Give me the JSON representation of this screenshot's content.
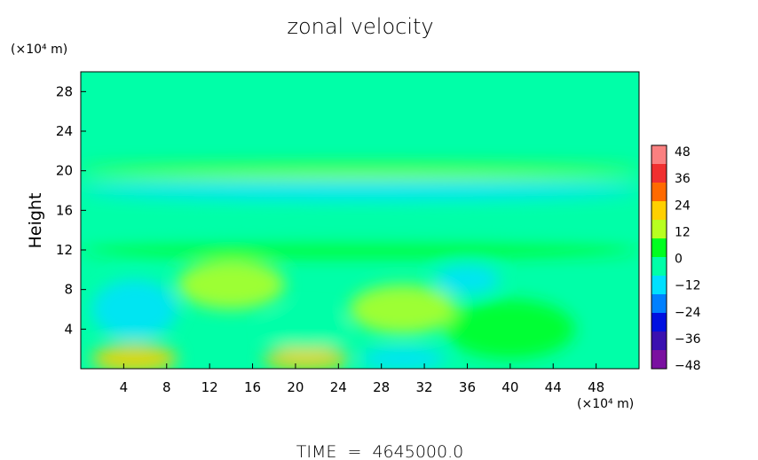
{
  "chart_data": {
    "type": "heatmap",
    "title": "zonal velocity",
    "xlabel": "",
    "ylabel": "Height",
    "x_unit": "(×10⁴ m)",
    "y_unit": "(×10⁴ m)",
    "footer": "TIME  =  4645000.0",
    "xlim": [
      0,
      52
    ],
    "ylim": [
      0,
      30
    ],
    "x_ticks": [
      4,
      8,
      12,
      16,
      20,
      24,
      28,
      32,
      36,
      40,
      44,
      48
    ],
    "y_ticks": [
      4,
      8,
      12,
      16,
      20,
      24,
      28
    ],
    "colorbar": {
      "range": [
        -48,
        48
      ],
      "tick_labels": [
        "48",
        "36",
        "24",
        "12",
        "0",
        "−12",
        "−24",
        "−36",
        "−48"
      ],
      "colors": [
        "#fa8080",
        "#f03030",
        "#ff6a00",
        "#ffd000",
        "#b8ff20",
        "#00ff20",
        "#00ffa8",
        "#00e0ff",
        "#0080ff",
        "#0010e0",
        "#3a10b0",
        "#7a10a0"
      ]
    },
    "background_value": 0,
    "features": [
      {
        "x": 5,
        "y": 6,
        "rx": 4,
        "ry": 3,
        "value": -14
      },
      {
        "x": 5,
        "y": 1,
        "rx": 4,
        "ry": 1.5,
        "value": 20
      },
      {
        "x": 14,
        "y": 8.5,
        "rx": 5,
        "ry": 2.5,
        "value": 14
      },
      {
        "x": 21,
        "y": 1,
        "rx": 4,
        "ry": 1.2,
        "value": 18
      },
      {
        "x": 21,
        "y": 4,
        "rx": 4,
        "ry": 2,
        "value": -6
      },
      {
        "x": 30,
        "y": 6,
        "rx": 5,
        "ry": 2.5,
        "value": 10
      },
      {
        "x": 30,
        "y": 1,
        "rx": 4,
        "ry": 1.2,
        "value": -12
      },
      {
        "x": 36,
        "y": 9,
        "rx": 3,
        "ry": 1.5,
        "value": -14
      },
      {
        "x": 40,
        "y": 4,
        "rx": 6,
        "ry": 3,
        "value": 4
      },
      {
        "x": 26,
        "y": 19.6,
        "rx": 26,
        "ry": 0.4,
        "value": 16
      },
      {
        "x": 26,
        "y": 18,
        "rx": 26,
        "ry": 1,
        "value": -8
      },
      {
        "x": 26,
        "y": 15,
        "rx": 26,
        "ry": 1.5,
        "value": -6
      },
      {
        "x": 26,
        "y": 12,
        "rx": 26,
        "ry": 0.8,
        "value": 6
      },
      {
        "x": 26,
        "y": 20.5,
        "rx": 26,
        "ry": 0.3,
        "value": 6
      }
    ]
  }
}
